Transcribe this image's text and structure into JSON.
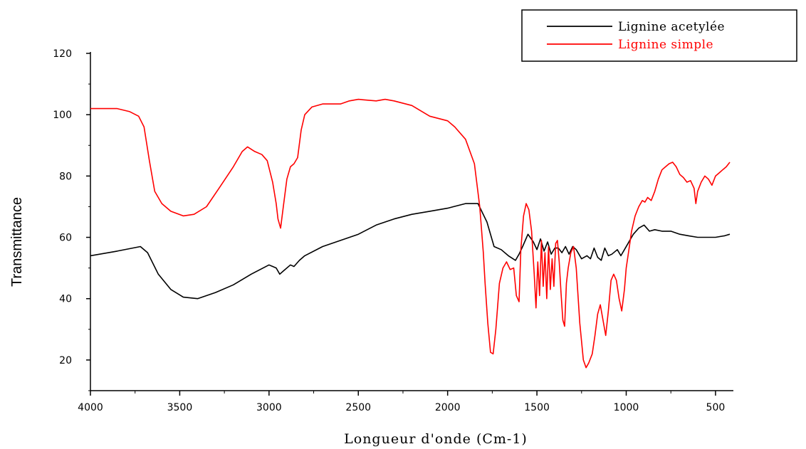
{
  "chart_data": {
    "type": "line",
    "title": "",
    "xlabel": "Longueur d'onde (Cm-1)",
    "ylabel": "Transmittance",
    "xlim": [
      4000,
      400
    ],
    "ylim": [
      10,
      120
    ],
    "x_ticks": [
      4000,
      3500,
      3000,
      2500,
      2000,
      1500,
      1000,
      500
    ],
    "y_ticks": [
      20,
      40,
      60,
      80,
      100,
      120
    ],
    "grid": false,
    "legend_position": "top-right",
    "series": [
      {
        "name": "Lignine acetylée",
        "color": "#000000",
        "points": [
          [
            4000,
            54
          ],
          [
            3850,
            55.5
          ],
          [
            3720,
            57
          ],
          [
            3680,
            55
          ],
          [
            3620,
            48
          ],
          [
            3550,
            43
          ],
          [
            3480,
            40.5
          ],
          [
            3400,
            40
          ],
          [
            3300,
            42
          ],
          [
            3200,
            44.5
          ],
          [
            3100,
            48
          ],
          [
            3000,
            51
          ],
          [
            2960,
            50
          ],
          [
            2940,
            48
          ],
          [
            2920,
            49
          ],
          [
            2880,
            51
          ],
          [
            2860,
            50.5
          ],
          [
            2830,
            52.5
          ],
          [
            2800,
            54
          ],
          [
            2700,
            57
          ],
          [
            2600,
            59
          ],
          [
            2500,
            61
          ],
          [
            2400,
            64
          ],
          [
            2300,
            66
          ],
          [
            2200,
            67.5
          ],
          [
            2100,
            68.5
          ],
          [
            2000,
            69.5
          ],
          [
            1900,
            71
          ],
          [
            1830,
            71
          ],
          [
            1780,
            65
          ],
          [
            1740,
            57
          ],
          [
            1700,
            56
          ],
          [
            1660,
            54
          ],
          [
            1620,
            52.5
          ],
          [
            1600,
            54.5
          ],
          [
            1580,
            57
          ],
          [
            1550,
            61
          ],
          [
            1520,
            58.5
          ],
          [
            1500,
            56
          ],
          [
            1480,
            59.5
          ],
          [
            1460,
            55.5
          ],
          [
            1440,
            58.5
          ],
          [
            1420,
            54.5
          ],
          [
            1400,
            56.5
          ],
          [
            1380,
            56.5
          ],
          [
            1360,
            55
          ],
          [
            1340,
            57
          ],
          [
            1320,
            54.5
          ],
          [
            1300,
            57
          ],
          [
            1280,
            56
          ],
          [
            1250,
            53
          ],
          [
            1220,
            54
          ],
          [
            1200,
            53
          ],
          [
            1180,
            56.5
          ],
          [
            1160,
            53.5
          ],
          [
            1140,
            52.5
          ],
          [
            1120,
            56.5
          ],
          [
            1100,
            54
          ],
          [
            1080,
            54.5
          ],
          [
            1050,
            56
          ],
          [
            1030,
            54
          ],
          [
            1010,
            56
          ],
          [
            990,
            58
          ],
          [
            960,
            61
          ],
          [
            930,
            63
          ],
          [
            900,
            64
          ],
          [
            870,
            62
          ],
          [
            840,
            62.5
          ],
          [
            800,
            62
          ],
          [
            750,
            62
          ],
          [
            700,
            61
          ],
          [
            650,
            60.5
          ],
          [
            600,
            60
          ],
          [
            500,
            60
          ],
          [
            450,
            60.5
          ],
          [
            420,
            61
          ]
        ]
      },
      {
        "name": "Lignine simple",
        "color": "#ff0000",
        "points": [
          [
            4000,
            102
          ],
          [
            3850,
            102
          ],
          [
            3780,
            101
          ],
          [
            3730,
            99.5
          ],
          [
            3700,
            96
          ],
          [
            3670,
            85
          ],
          [
            3640,
            75
          ],
          [
            3600,
            71
          ],
          [
            3550,
            68.5
          ],
          [
            3480,
            67
          ],
          [
            3420,
            67.5
          ],
          [
            3350,
            70
          ],
          [
            3280,
            76
          ],
          [
            3200,
            83
          ],
          [
            3150,
            88
          ],
          [
            3120,
            89.5
          ],
          [
            3080,
            88
          ],
          [
            3040,
            87
          ],
          [
            3010,
            85
          ],
          [
            2980,
            78
          ],
          [
            2960,
            71
          ],
          [
            2950,
            66
          ],
          [
            2935,
            63
          ],
          [
            2920,
            70
          ],
          [
            2900,
            79
          ],
          [
            2880,
            83
          ],
          [
            2860,
            84
          ],
          [
            2840,
            86
          ],
          [
            2820,
            95
          ],
          [
            2800,
            100
          ],
          [
            2760,
            102.5
          ],
          [
            2700,
            103.5
          ],
          [
            2600,
            103.5
          ],
          [
            2550,
            104.5
          ],
          [
            2500,
            105
          ],
          [
            2400,
            104.5
          ],
          [
            2350,
            105
          ],
          [
            2300,
            104.5
          ],
          [
            2200,
            103
          ],
          [
            2100,
            99.5
          ],
          [
            2000,
            98
          ],
          [
            1960,
            96
          ],
          [
            1900,
            92
          ],
          [
            1850,
            84
          ],
          [
            1820,
            70
          ],
          [
            1800,
            55
          ],
          [
            1790,
            45
          ],
          [
            1775,
            32
          ],
          [
            1760,
            22.5
          ],
          [
            1745,
            22
          ],
          [
            1730,
            30
          ],
          [
            1710,
            45
          ],
          [
            1690,
            50
          ],
          [
            1670,
            52
          ],
          [
            1650,
            49.5
          ],
          [
            1630,
            50
          ],
          [
            1615,
            41
          ],
          [
            1600,
            39
          ],
          [
            1590,
            56
          ],
          [
            1575,
            67
          ],
          [
            1560,
            71
          ],
          [
            1545,
            69
          ],
          [
            1530,
            62
          ],
          [
            1515,
            48
          ],
          [
            1505,
            37
          ],
          [
            1495,
            52
          ],
          [
            1485,
            41
          ],
          [
            1475,
            59
          ],
          [
            1465,
            44
          ],
          [
            1455,
            55
          ],
          [
            1445,
            40
          ],
          [
            1435,
            57
          ],
          [
            1425,
            43
          ],
          [
            1415,
            53
          ],
          [
            1405,
            44
          ],
          [
            1395,
            58
          ],
          [
            1385,
            59
          ],
          [
            1375,
            52
          ],
          [
            1365,
            42
          ],
          [
            1355,
            33
          ],
          [
            1345,
            31
          ],
          [
            1335,
            45
          ],
          [
            1325,
            50
          ],
          [
            1310,
            55
          ],
          [
            1295,
            57
          ],
          [
            1280,
            50
          ],
          [
            1260,
            32
          ],
          [
            1240,
            20
          ],
          [
            1225,
            17.5
          ],
          [
            1210,
            19
          ],
          [
            1190,
            22
          ],
          [
            1175,
            28
          ],
          [
            1160,
            35
          ],
          [
            1145,
            38
          ],
          [
            1130,
            33
          ],
          [
            1115,
            28
          ],
          [
            1100,
            36
          ],
          [
            1085,
            46
          ],
          [
            1070,
            48
          ],
          [
            1055,
            46
          ],
          [
            1040,
            40
          ],
          [
            1025,
            36
          ],
          [
            1010,
            43
          ],
          [
            1000,
            50
          ],
          [
            985,
            56
          ],
          [
            970,
            62
          ],
          [
            950,
            67
          ],
          [
            930,
            70
          ],
          [
            910,
            72
          ],
          [
            895,
            71.5
          ],
          [
            880,
            73
          ],
          [
            860,
            72
          ],
          [
            840,
            75
          ],
          [
            820,
            79
          ],
          [
            800,
            82
          ],
          [
            780,
            83
          ],
          [
            760,
            84
          ],
          [
            740,
            84.5
          ],
          [
            720,
            83
          ],
          [
            700,
            80.5
          ],
          [
            680,
            79.5
          ],
          [
            660,
            78
          ],
          [
            640,
            78.5
          ],
          [
            620,
            76
          ],
          [
            610,
            71
          ],
          [
            600,
            75
          ],
          [
            580,
            78
          ],
          [
            560,
            80
          ],
          [
            540,
            79
          ],
          [
            520,
            77
          ],
          [
            500,
            80
          ],
          [
            480,
            81
          ],
          [
            460,
            82
          ],
          [
            440,
            83
          ],
          [
            420,
            84.5
          ]
        ]
      }
    ]
  }
}
